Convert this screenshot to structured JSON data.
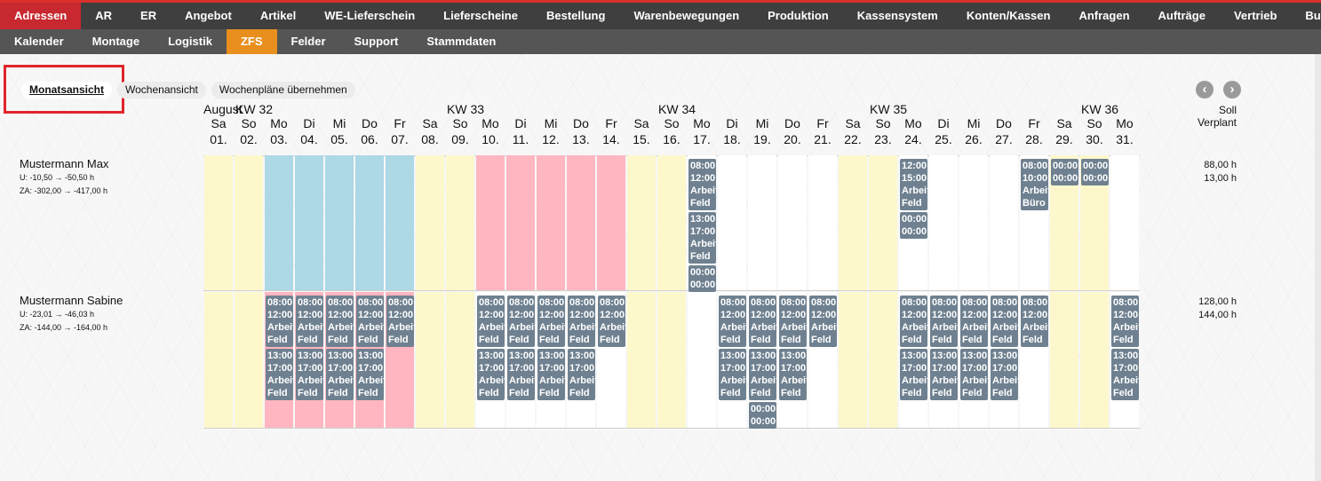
{
  "nav_primary": [
    {
      "label": "Adressen",
      "active": true
    },
    {
      "label": "AR"
    },
    {
      "label": "ER"
    },
    {
      "label": "Angebot"
    },
    {
      "label": "Artikel"
    },
    {
      "label": "WE-Lieferschein"
    },
    {
      "label": "Lieferscheine"
    },
    {
      "label": "Bestellung"
    },
    {
      "label": "Warenbewegungen"
    },
    {
      "label": "Produktion"
    },
    {
      "label": "Kassensystem"
    },
    {
      "label": "Konten/Kassen"
    },
    {
      "label": "Anfragen"
    },
    {
      "label": "Aufträge"
    },
    {
      "label": "Vertrieb"
    },
    {
      "label": "Buchhaltung"
    }
  ],
  "nav_secondary": [
    {
      "label": "Kalender"
    },
    {
      "label": "Montage"
    },
    {
      "label": "Logistik"
    },
    {
      "label": "ZFS",
      "active": true
    },
    {
      "label": "Felder"
    },
    {
      "label": "Support"
    },
    {
      "label": "Stammdaten"
    }
  ],
  "views": [
    {
      "label": "Monatsansicht",
      "selected": true
    },
    {
      "label": "Wochenansicht"
    },
    {
      "label": "Wochenpläne übernehmen"
    }
  ],
  "month_label": "August",
  "weeks": [
    {
      "label": "KW 32",
      "start_day": 2
    },
    {
      "label": "KW 33",
      "start_day": 9
    },
    {
      "label": "KW 34",
      "start_day": 16
    },
    {
      "label": "KW 35",
      "start_day": 23
    },
    {
      "label": "KW 36",
      "start_day": 30
    }
  ],
  "days": [
    {
      "wd": "Sa",
      "d": "01.",
      "type": "weekend"
    },
    {
      "wd": "So",
      "d": "02.",
      "type": "weekend"
    },
    {
      "wd": "Mo",
      "d": "03.",
      "type": "work"
    },
    {
      "wd": "Di",
      "d": "04.",
      "type": "work"
    },
    {
      "wd": "Mi",
      "d": "05.",
      "type": "work"
    },
    {
      "wd": "Do",
      "d": "06.",
      "type": "work"
    },
    {
      "wd": "Fr",
      "d": "07.",
      "type": "work"
    },
    {
      "wd": "Sa",
      "d": "08.",
      "type": "weekend"
    },
    {
      "wd": "So",
      "d": "09.",
      "type": "weekend"
    },
    {
      "wd": "Mo",
      "d": "10.",
      "type": "work"
    },
    {
      "wd": "Di",
      "d": "11.",
      "type": "work"
    },
    {
      "wd": "Mi",
      "d": "12.",
      "type": "work"
    },
    {
      "wd": "Do",
      "d": "13.",
      "type": "work"
    },
    {
      "wd": "Fr",
      "d": "14.",
      "type": "work"
    },
    {
      "wd": "Sa",
      "d": "15.",
      "type": "weekend"
    },
    {
      "wd": "So",
      "d": "16.",
      "type": "weekend"
    },
    {
      "wd": "Mo",
      "d": "17.",
      "type": "work"
    },
    {
      "wd": "Di",
      "d": "18.",
      "type": "work"
    },
    {
      "wd": "Mi",
      "d": "19.",
      "type": "work"
    },
    {
      "wd": "Do",
      "d": "20.",
      "type": "work"
    },
    {
      "wd": "Fr",
      "d": "21.",
      "type": "work"
    },
    {
      "wd": "Sa",
      "d": "22.",
      "type": "weekend"
    },
    {
      "wd": "So",
      "d": "23.",
      "type": "weekend"
    },
    {
      "wd": "Mo",
      "d": "24.",
      "type": "work"
    },
    {
      "wd": "Di",
      "d": "25.",
      "type": "work"
    },
    {
      "wd": "Mi",
      "d": "26.",
      "type": "work"
    },
    {
      "wd": "Do",
      "d": "27.",
      "type": "work"
    },
    {
      "wd": "Fr",
      "d": "28.",
      "type": "work"
    },
    {
      "wd": "Sa",
      "d": "29.",
      "type": "weekend"
    },
    {
      "wd": "So",
      "d": "30.",
      "type": "weekend"
    },
    {
      "wd": "Mo",
      "d": "31.",
      "type": "work"
    }
  ],
  "soll_header": [
    "Soll",
    "Verplant"
  ],
  "colors": {
    "weekend": "#fdf8cc",
    "blue": "#add8e6",
    "pink": "#ffb6c1",
    "white": "#ffffff",
    "entry": "#6f8190"
  },
  "persons": [
    {
      "name": "Mustermann Max",
      "u": "U: -10,50 → -50,50 h",
      "za": "ZA: -302,00 → -417,00 h",
      "soll": "88,00 h",
      "verplant": "13,00 h",
      "day_colors": {
        "3": "blue",
        "4": "blue",
        "5": "blue",
        "6": "blue",
        "7": "blue",
        "10": "pink",
        "11": "pink",
        "12": "pink",
        "13": "pink",
        "14": "pink"
      },
      "entries": {
        "17": [
          [
            "08:00",
            "12:00",
            "Arbeit",
            "Feld"
          ],
          [
            "13:00",
            "17:00",
            "Arbeit",
            "Feld"
          ],
          [
            "00:00",
            "00:00"
          ]
        ],
        "24": [
          [
            "12:00",
            "15:00",
            "Arbeit",
            "Feld"
          ],
          [
            "00:00",
            "00:00"
          ]
        ],
        "28": [
          [
            "08:00",
            "10:00",
            "Arbeit",
            "Büro"
          ]
        ],
        "29": [
          [
            "00:00",
            "00:00"
          ]
        ],
        "30": [
          [
            "00:00",
            "00:00"
          ]
        ]
      }
    },
    {
      "name": "Mustermann Sabine",
      "u": "U: -23,01 → -46,03 h",
      "za": "ZA: -144,00 → -164,00 h",
      "soll": "128,00 h",
      "verplant": "144,00 h",
      "day_colors": {
        "3": "pink",
        "4": "pink",
        "5": "pink",
        "6": "pink",
        "7": "pink"
      },
      "entries": {
        "3": [
          [
            "08:00",
            "12:00",
            "Arbeit",
            "Feld"
          ],
          [
            "13:00",
            "17:00",
            "Arbeit",
            "Feld"
          ]
        ],
        "4": [
          [
            "08:00",
            "12:00",
            "Arbeit",
            "Feld"
          ],
          [
            "13:00",
            "17:00",
            "Arbeit",
            "Feld"
          ]
        ],
        "5": [
          [
            "08:00",
            "12:00",
            "Arbeit",
            "Feld"
          ],
          [
            "13:00",
            "17:00",
            "Arbeit",
            "Feld"
          ]
        ],
        "6": [
          [
            "08:00",
            "12:00",
            "Arbeit",
            "Feld"
          ],
          [
            "13:00",
            "17:00",
            "Arbeit",
            "Feld"
          ]
        ],
        "7": [
          [
            "08:00",
            "12:00",
            "Arbeit",
            "Feld"
          ]
        ],
        "10": [
          [
            "08:00",
            "12:00",
            "Arbeit",
            "Feld"
          ],
          [
            "13:00",
            "17:00",
            "Arbeit",
            "Feld"
          ]
        ],
        "11": [
          [
            "08:00",
            "12:00",
            "Arbeit",
            "Feld"
          ],
          [
            "13:00",
            "17:00",
            "Arbeit",
            "Feld"
          ]
        ],
        "12": [
          [
            "08:00",
            "12:00",
            "Arbeit",
            "Feld"
          ],
          [
            "13:00",
            "17:00",
            "Arbeit",
            "Feld"
          ]
        ],
        "13": [
          [
            "08:00",
            "12:00",
            "Arbeit",
            "Feld"
          ],
          [
            "13:00",
            "17:00",
            "Arbeit",
            "Feld"
          ]
        ],
        "14": [
          [
            "08:00",
            "12:00",
            "Arbeit",
            "Feld"
          ]
        ],
        "18": [
          [
            "08:00",
            "12:00",
            "Arbeit",
            "Feld"
          ],
          [
            "13:00",
            "17:00",
            "Arbeit",
            "Feld"
          ]
        ],
        "19": [
          [
            "08:00",
            "12:00",
            "Arbeit",
            "Feld"
          ],
          [
            "13:00",
            "17:00",
            "Arbeit",
            "Feld"
          ],
          [
            "00:00",
            "00:00"
          ]
        ],
        "20": [
          [
            "08:00",
            "12:00",
            "Arbeit",
            "Feld"
          ],
          [
            "13:00",
            "17:00",
            "Arbeit",
            "Feld"
          ]
        ],
        "21": [
          [
            "08:00",
            "12:00",
            "Arbeit",
            "Feld"
          ]
        ],
        "24": [
          [
            "08:00",
            "12:00",
            "Arbeit",
            "Feld"
          ],
          [
            "13:00",
            "17:00",
            "Arbeit",
            "Feld"
          ]
        ],
        "25": [
          [
            "08:00",
            "12:00",
            "Arbeit",
            "Feld"
          ],
          [
            "13:00",
            "17:00",
            "Arbeit",
            "Feld"
          ]
        ],
        "26": [
          [
            "08:00",
            "12:00",
            "Arbeit",
            "Feld"
          ],
          [
            "13:00",
            "17:00",
            "Arbeit",
            "Feld"
          ]
        ],
        "27": [
          [
            "08:00",
            "12:00",
            "Arbeit",
            "Feld"
          ],
          [
            "13:00",
            "17:00",
            "Arbeit",
            "Feld"
          ]
        ],
        "28": [
          [
            "08:00",
            "12:00",
            "Arbeit",
            "Feld"
          ]
        ],
        "31": [
          [
            "08:00",
            "12:00",
            "Arbeit",
            "Feld"
          ],
          [
            "13:00",
            "17:00",
            "Arbeit",
            "Feld"
          ]
        ]
      }
    }
  ]
}
